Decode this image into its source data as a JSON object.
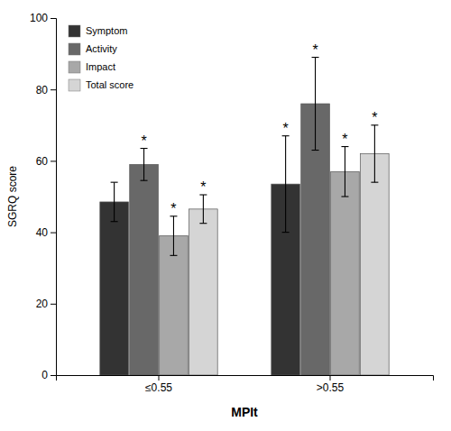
{
  "chart_data": {
    "type": "bar",
    "xlabel": "MPIt",
    "ylabel": "SGRQ score",
    "categories": [
      "≤0.55",
      ">0.55"
    ],
    "series": [
      {
        "name": "Symptom",
        "color": "#333333",
        "values": [
          48.5,
          53.5
        ],
        "errors": [
          5.5,
          13.5
        ]
      },
      {
        "name": "Activity",
        "color": "#686868",
        "values": [
          59.0,
          76.0
        ],
        "errors": [
          4.5,
          13.0
        ]
      },
      {
        "name": "Impact",
        "color": "#a8a8a8",
        "values": [
          39.0,
          57.0
        ],
        "errors": [
          5.5,
          7.0
        ]
      },
      {
        "name": "Total score",
        "color": "#d5d5d5",
        "values": [
          46.5,
          62.0
        ],
        "errors": [
          4.0,
          8.0
        ]
      }
    ],
    "annotations": [
      {
        "text": "*",
        "category": "≤0.55",
        "series": "Activity"
      },
      {
        "text": "*",
        "category": "≤0.55",
        "series": "Impact"
      },
      {
        "text": "*",
        "category": "≤0.55",
        "series": "Total score"
      },
      {
        "text": "*",
        "category": ">0.55",
        "series": "Symptom"
      },
      {
        "text": "*",
        "category": ">0.55",
        "series": "Activity"
      },
      {
        "text": "*",
        "category": ">0.55",
        "series": "Impact"
      },
      {
        "text": "*",
        "category": ">0.55",
        "series": "Total score"
      }
    ],
    "ylim": [
      0,
      100
    ],
    "yticks": [
      0,
      20,
      40,
      60,
      80,
      100
    ],
    "grid": false,
    "legend": "upper left"
  }
}
